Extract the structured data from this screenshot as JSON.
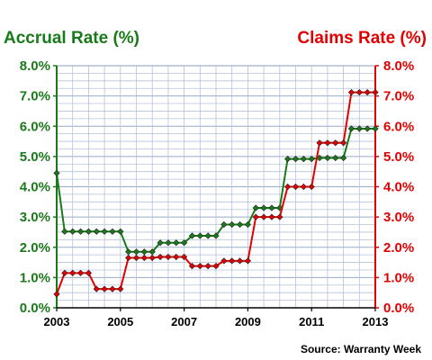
{
  "chart_data": {
    "type": "line",
    "left_axis_title": "Accrual Rate (%)",
    "right_axis_title": "Claims Rate (%)",
    "source": "Source: Warranty Week",
    "y_ticks": [
      "0.0%",
      "1.0%",
      "2.0%",
      "3.0%",
      "4.0%",
      "5.0%",
      "6.0%",
      "7.0%",
      "8.0%"
    ],
    "ylim": [
      0,
      8
    ],
    "x_ticks": [
      "2003",
      "2005",
      "2007",
      "2009",
      "2011",
      "2013"
    ],
    "xlim": [
      2003,
      2013
    ],
    "grid": true,
    "colors": {
      "accrual": "#1a7a1a",
      "claims": "#e30000"
    },
    "series": [
      {
        "key": "accrual",
        "x": [
          2003.0,
          2003.25,
          2003.5,
          2003.75,
          2004.0,
          2004.25,
          2004.5,
          2004.75,
          2005.0,
          2005.25,
          2005.5,
          2005.75,
          2006.0,
          2006.25,
          2006.5,
          2006.75,
          2007.0,
          2007.25,
          2007.5,
          2007.75,
          2008.0,
          2008.25,
          2008.5,
          2008.75,
          2009.0,
          2009.25,
          2009.5,
          2009.75,
          2010.0,
          2010.25,
          2010.5,
          2010.75,
          2011.0,
          2011.25,
          2011.5,
          2011.75,
          2012.0,
          2012.25,
          2012.5,
          2012.75,
          2013.0
        ],
        "values": [
          4.45,
          2.52,
          2.52,
          2.52,
          2.52,
          2.52,
          2.52,
          2.52,
          2.52,
          1.85,
          1.85,
          1.85,
          1.85,
          2.15,
          2.15,
          2.15,
          2.15,
          2.38,
          2.38,
          2.38,
          2.38,
          2.75,
          2.75,
          2.75,
          2.75,
          3.3,
          3.3,
          3.3,
          3.3,
          4.92,
          4.92,
          4.92,
          4.92,
          4.95,
          4.95,
          4.95,
          4.95,
          5.92,
          5.92,
          5.92,
          5.92
        ]
      },
      {
        "key": "claims",
        "x": [
          2003.0,
          2003.25,
          2003.5,
          2003.75,
          2004.0,
          2004.25,
          2004.5,
          2004.75,
          2005.0,
          2005.25,
          2005.5,
          2005.75,
          2006.0,
          2006.25,
          2006.5,
          2006.75,
          2007.0,
          2007.25,
          2007.5,
          2007.75,
          2008.0,
          2008.25,
          2008.5,
          2008.75,
          2009.0,
          2009.25,
          2009.5,
          2009.75,
          2010.0,
          2010.25,
          2010.5,
          2010.75,
          2011.0,
          2011.25,
          2011.5,
          2011.75,
          2012.0,
          2012.25,
          2012.5,
          2012.75,
          2013.0
        ],
        "values": [
          0.45,
          1.15,
          1.15,
          1.15,
          1.15,
          0.62,
          0.62,
          0.62,
          0.62,
          1.65,
          1.65,
          1.65,
          1.65,
          1.68,
          1.68,
          1.68,
          1.68,
          1.38,
          1.38,
          1.38,
          1.38,
          1.55,
          1.55,
          1.55,
          1.55,
          3.0,
          3.0,
          3.0,
          3.0,
          4.0,
          4.0,
          4.0,
          4.0,
          5.45,
          5.45,
          5.45,
          5.45,
          7.12,
          7.12,
          7.12,
          7.12
        ]
      }
    ]
  }
}
